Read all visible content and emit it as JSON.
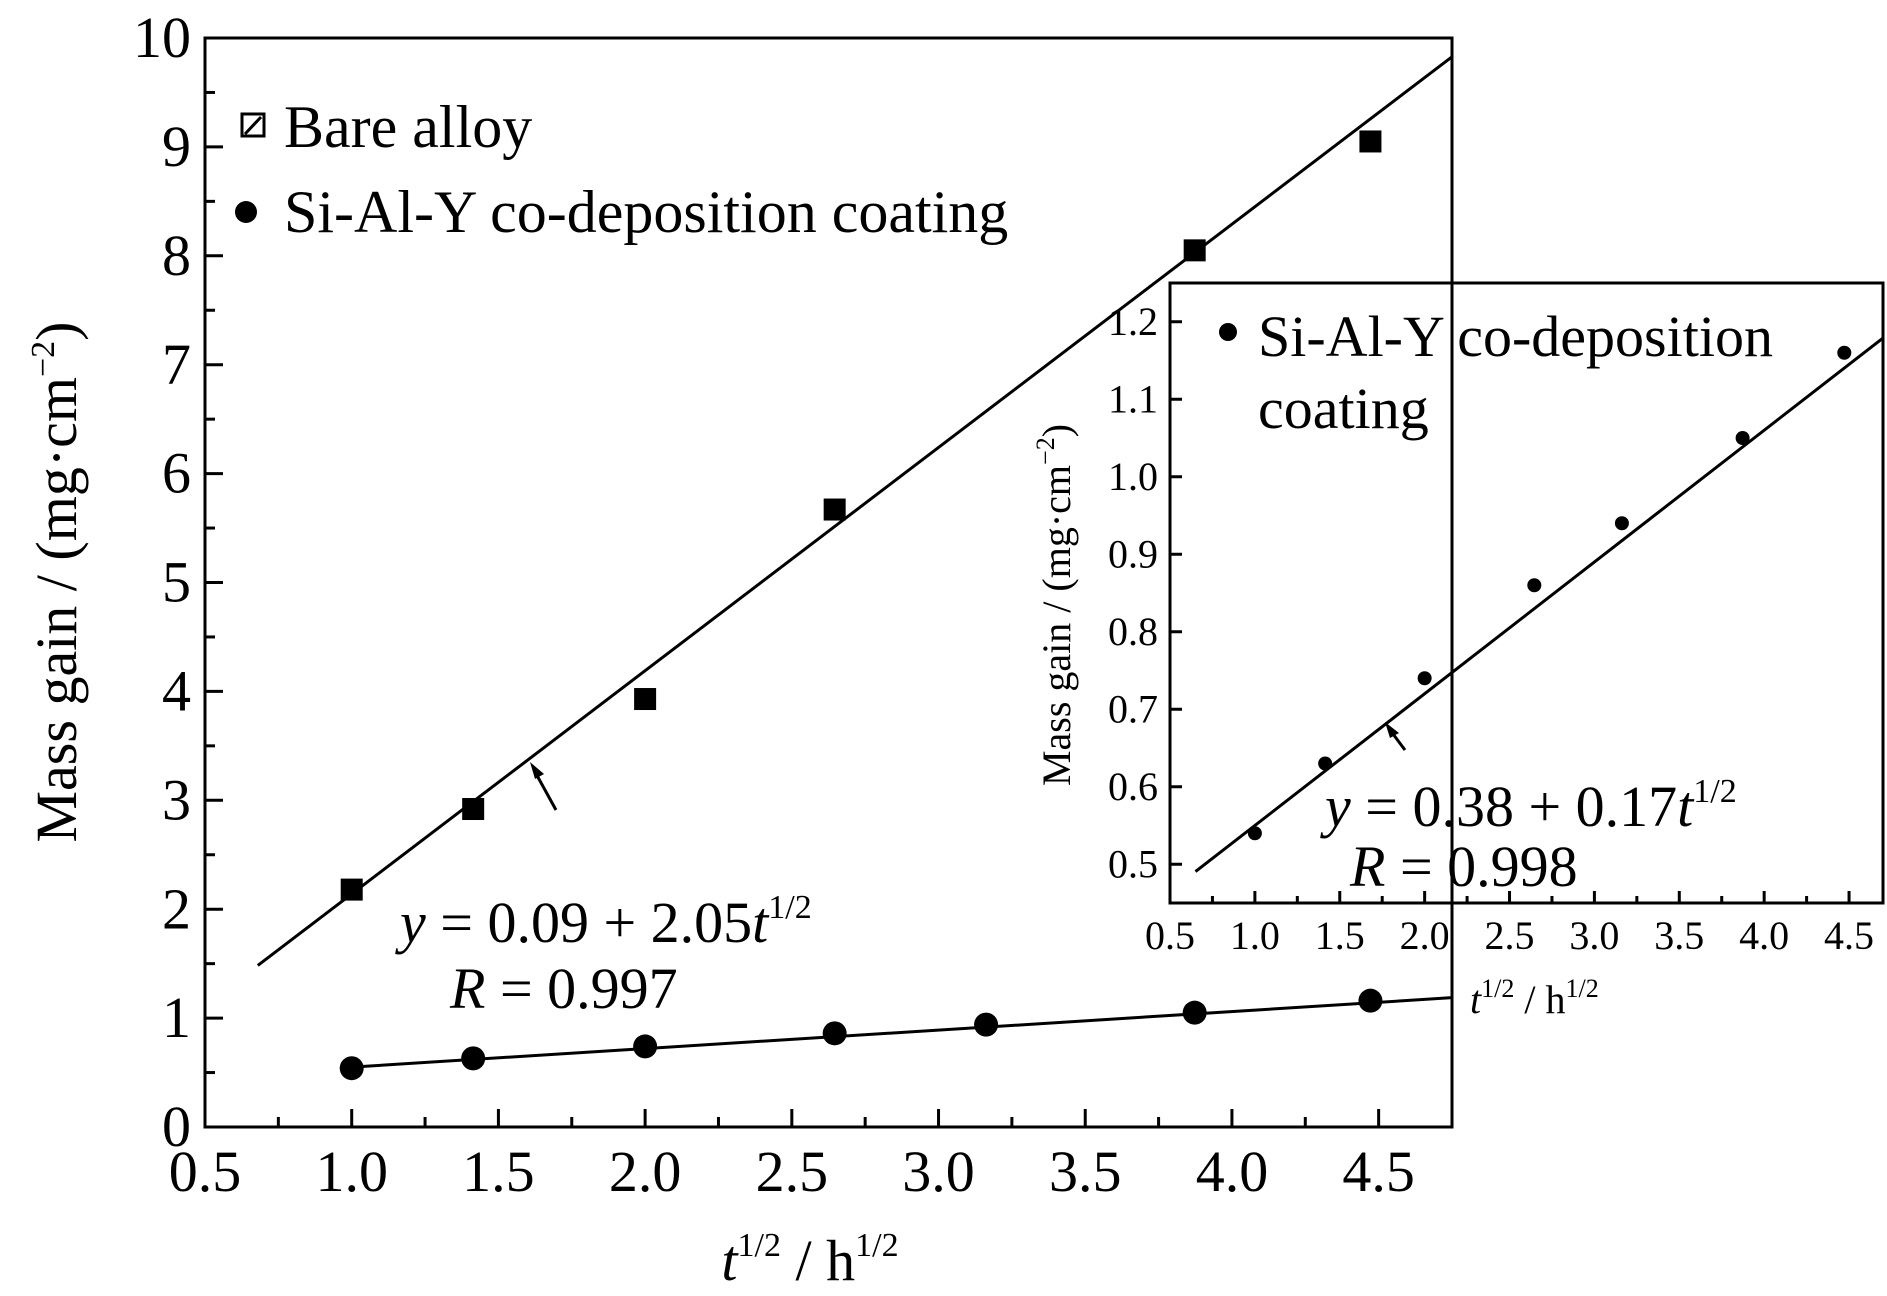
{
  "chart_data": [
    {
      "type": "scatter",
      "title": "",
      "xlabel": {
        "base": "t",
        "base_sup": "1/2",
        "sep": " / h",
        "unit_sup": "1/2"
      },
      "ylabel": {
        "text": "Mass gain / (mg·cm",
        "sup": "−2",
        "close": ")"
      },
      "xlim": [
        0.5,
        4.75
      ],
      "ylim": [
        0,
        10
      ],
      "x_ticks": [
        "0.5",
        "1.0",
        "1.5",
        "2.0",
        "2.5",
        "3.0",
        "3.5",
        "4.0",
        "4.5"
      ],
      "y_ticks": [
        "0",
        "1",
        "2",
        "3",
        "4",
        "5",
        "6",
        "7",
        "8",
        "9",
        "10"
      ],
      "legend": {
        "placement": "top-left"
      },
      "series": [
        {
          "name": "Bare alloy",
          "marker": "square",
          "x": [
            1.0,
            1.414,
            2.0,
            2.646,
            3.873,
            4.472
          ],
          "y": [
            2.18,
            2.92,
            3.93,
            5.67,
            8.05,
            9.05
          ],
          "fit": {
            "intercept": 0.09,
            "slope": 2.05,
            "x_range": [
              0.68,
              4.75
            ]
          }
        },
        {
          "name": "Si-Al-Y co-deposition coating",
          "marker": "circle",
          "x": [
            1.0,
            1.414,
            2.0,
            2.646,
            3.162,
            3.873,
            4.472
          ],
          "y": [
            0.54,
            0.63,
            0.74,
            0.86,
            0.94,
            1.05,
            1.16
          ],
          "fit": {
            "intercept": 0.38,
            "slope": 0.17,
            "x_range": [
              1.0,
              4.75
            ]
          }
        }
      ],
      "annotations": {
        "equation": {
          "y": "y",
          "eq": " = 0.09 + 2.05",
          "t": "t",
          "sup": "1/2"
        },
        "r": {
          "R": "R",
          "eq": " = 0.997"
        }
      }
    },
    {
      "type": "scatter",
      "title": "",
      "xlabel": {
        "base": "t",
        "base_sup": "1/2",
        "sep": " / h",
        "unit_sup": "1/2"
      },
      "ylabel": {
        "text": "Mass gain / (mg·cm",
        "sup": "−2",
        "close": ")"
      },
      "xlim": [
        0.5,
        4.7
      ],
      "ylim": [
        0.45,
        1.25
      ],
      "x_ticks": [
        "0.5",
        "1.0",
        "1.5",
        "2.0",
        "2.5",
        "3.0",
        "3.5",
        "4.0",
        "4.5"
      ],
      "y_ticks": [
        "0.5",
        "0.6",
        "0.7",
        "0.8",
        "0.9",
        "1.0",
        "1.1",
        "1.2"
      ],
      "legend": {
        "placement": "top-left",
        "line1": "Si-Al-Y co-deposition",
        "line2": "coating"
      },
      "series": [
        {
          "name": "Si-Al-Y co-deposition coating",
          "marker": "circle",
          "x": [
            1.0,
            1.414,
            2.0,
            2.646,
            3.162,
            3.873,
            4.472
          ],
          "y": [
            0.54,
            0.63,
            0.74,
            0.86,
            0.94,
            1.05,
            1.16
          ],
          "fit": {
            "intercept": 0.38,
            "slope": 0.17,
            "x_range": [
              0.65,
              4.7
            ]
          }
        }
      ],
      "annotations": {
        "equation": {
          "y": "y",
          "eq": " = 0.38 + 0.17",
          "t": "t",
          "sup": "1/2"
        },
        "r": {
          "R": "R",
          "eq": " = 0.998"
        }
      }
    }
  ]
}
